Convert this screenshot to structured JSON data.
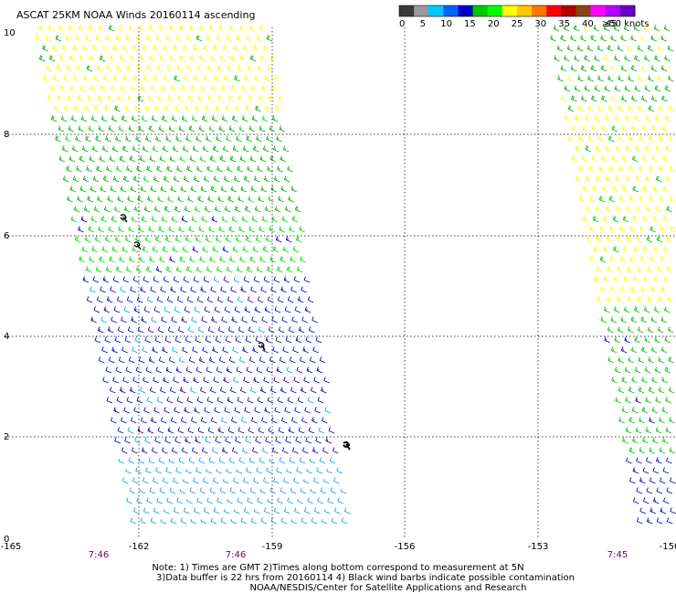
{
  "title": "ASCAT 25KM NOAA Winds 20160114 ascending",
  "legend": {
    "labels": [
      "0",
      "5",
      "10",
      "15",
      "20",
      "25",
      "30",
      "35",
      "40",
      "45",
      "≥50 knots"
    ],
    "colors": [
      "#3a3a3a",
      "#9a9a9a",
      "#00c8ff",
      "#0064ff",
      "#0000c8",
      "#00c800",
      "#00ff00",
      "#ffff00",
      "#ffc800",
      "#ff7800",
      "#ff0000",
      "#b40000",
      "#8b4513",
      "#ff00ff",
      "#b400ff",
      "#6a00c8"
    ]
  },
  "axes": {
    "x_ticks": [
      "-165",
      "-162",
      "-159",
      "-156",
      "-153",
      "-150"
    ],
    "y_ticks": [
      "10",
      "8",
      "6",
      "4",
      "2",
      "0"
    ],
    "x_range": [
      -165,
      -150
    ],
    "y_range": [
      0,
      10
    ]
  },
  "times": [
    "7:46",
    "7:46",
    "7:45"
  ],
  "notes": [
    "Note: 1) Times are GMT 2)Times along bottom correspond to measurement at 5N",
    "3)Data buffer is 22 hrs from 20160114 4) Black wind barbs indicate possible contamination",
    "NOAA/NESDIS/Center for Satellite Applications and Research"
  ],
  "swaths": [
    {
      "name": "left-swath",
      "bands": [
        {
          "lat_from": 10.0,
          "lat_to": 8.3,
          "speed_knots": 20,
          "color": "#ffff00"
        },
        {
          "lat_from": 8.3,
          "lat_to": 6.3,
          "speed_knots": 15,
          "color": "#00b400"
        },
        {
          "lat_from": 6.3,
          "lat_to": 5.0,
          "speed_knots": 15,
          "color": "#00e000"
        },
        {
          "lat_from": 5.0,
          "lat_to": 1.6,
          "speed_knots": 10,
          "color": "#0000c8"
        },
        {
          "lat_from": 1.6,
          "lat_to": 0.0,
          "speed_knots": 8,
          "color": "#00a0ff"
        }
      ]
    },
    {
      "name": "right-swath",
      "bands": [
        {
          "lat_from": 10.0,
          "lat_to": 8.5,
          "speed_knots": 15,
          "color": "#00b400"
        },
        {
          "lat_from": 8.5,
          "lat_to": 4.5,
          "speed_knots": 20,
          "color": "#ffff00"
        },
        {
          "lat_from": 4.5,
          "lat_to": 1.5,
          "speed_knots": 15,
          "color": "#00c800"
        },
        {
          "lat_from": 1.5,
          "lat_to": 0.0,
          "speed_knots": 10,
          "color": "#0000c8"
        }
      ]
    }
  ]
}
